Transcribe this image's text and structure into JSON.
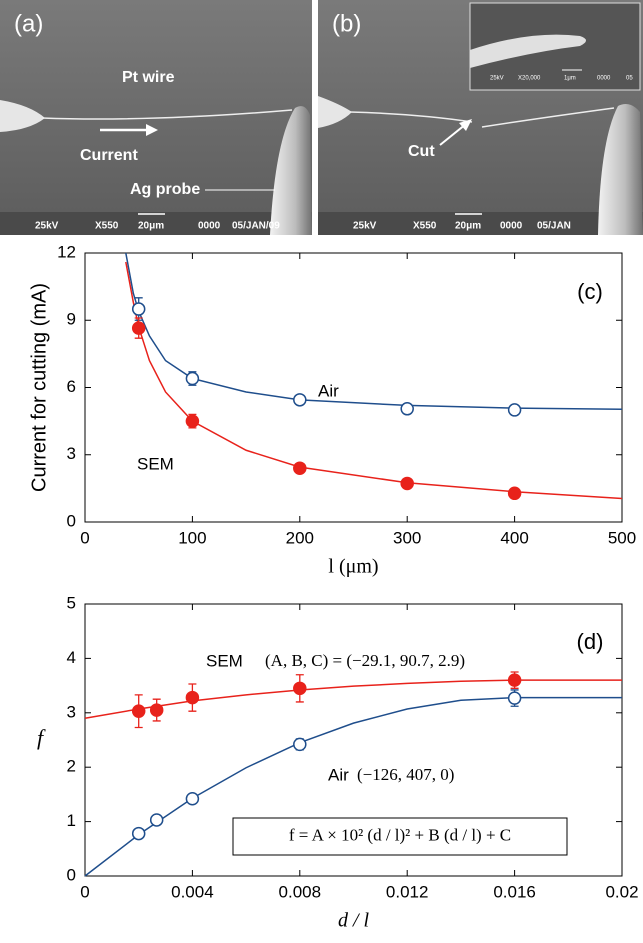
{
  "images": [
    {
      "label": "(a)",
      "annotations": [
        "Pt wire",
        "Current",
        "Ag probe"
      ],
      "info": [
        "25kV",
        "X550",
        "20μm",
        "0000",
        "05/JAN/09"
      ]
    },
    {
      "label": "(b)",
      "annotations": [
        "Cut"
      ],
      "info": [
        "25kV",
        "X550",
        "20μm",
        "0000",
        "05/JAN"
      ],
      "inset_info": [
        "25kV",
        "X20,000",
        "1μm",
        "0000",
        "05"
      ]
    }
  ],
  "chart_data": [
    {
      "type": "scatter",
      "panel_label": "(c)",
      "x_label": "l (μm)",
      "y_label": "Current for cutting (mA)",
      "xlim": [
        0,
        500
      ],
      "xticks": [
        0,
        100,
        200,
        300,
        400,
        500
      ],
      "ylim": [
        0,
        12
      ],
      "yticks": [
        0,
        3,
        6,
        9,
        12
      ],
      "series": [
        {
          "name": "Air",
          "color": "#1f4e8c",
          "marker": "open",
          "x": [
            50,
            100,
            200,
            300,
            400
          ],
          "values": [
            9.5,
            6.4,
            5.45,
            5.05,
            5.0
          ],
          "errors": [
            0.5,
            0.3,
            0.15,
            0.15,
            0.15
          ],
          "curve_x": [
            38,
            45,
            50,
            60,
            75,
            100,
            150,
            200,
            300,
            400,
            500
          ],
          "curve_values": [
            12,
            10.2,
            9.4,
            8.3,
            7.2,
            6.4,
            5.8,
            5.45,
            5.2,
            5.08,
            5.03
          ]
        },
        {
          "name": "SEM",
          "color": "#e8221b",
          "marker": "filled",
          "x": [
            50,
            100,
            200,
            300,
            400
          ],
          "values": [
            8.65,
            4.5,
            2.4,
            1.72,
            1.28
          ],
          "errors": [
            0.45,
            0.3,
            0.2,
            0.15,
            0.15
          ],
          "curve_x": [
            38,
            45,
            50,
            60,
            75,
            100,
            150,
            200,
            300,
            400,
            500
          ],
          "curve_values": [
            11.6,
            9.8,
            8.7,
            7.2,
            5.8,
            4.5,
            3.2,
            2.45,
            1.75,
            1.35,
            1.05
          ]
        }
      ]
    },
    {
      "type": "scatter",
      "panel_label": "(d)",
      "x_label": "d / l",
      "y_label": "f",
      "xlim": [
        0,
        0.02
      ],
      "xticks": [
        0,
        0.004,
        0.008,
        0.012,
        0.016,
        0.02
      ],
      "ylim": [
        0,
        5
      ],
      "yticks": [
        0,
        1,
        2,
        3,
        4,
        5
      ],
      "annotations": [
        "(A, B, C) = (−29.1, 90.7, 2.9)",
        "(−126, 407, 0)",
        "f = A × 10² (d / l)² + B (d / l) + C"
      ],
      "series": [
        {
          "name": "SEM",
          "color": "#e8221b",
          "marker": "filled",
          "x": [
            0.002,
            0.00267,
            0.004,
            0.008,
            0.016
          ],
          "values": [
            3.03,
            3.05,
            3.28,
            3.45,
            3.6
          ],
          "errors": [
            0.3,
            0.2,
            0.25,
            0.25,
            0.15
          ],
          "curve_x": [
            0,
            0.002,
            0.004,
            0.006,
            0.008,
            0.01,
            0.012,
            0.014,
            0.016,
            0.018,
            0.02
          ],
          "curve_values": [
            2.9,
            3.07,
            3.22,
            3.33,
            3.42,
            3.49,
            3.54,
            3.58,
            3.6,
            3.6,
            3.6
          ]
        },
        {
          "name": "Air",
          "color": "#1f4e8c",
          "marker": "open",
          "x": [
            0.002,
            0.00267,
            0.004,
            0.008,
            0.016
          ],
          "values": [
            0.78,
            1.03,
            1.42,
            2.42,
            3.27
          ],
          "errors": [
            0.08,
            0.08,
            0.08,
            0.1,
            0.15
          ],
          "curve_x": [
            0,
            0.002,
            0.004,
            0.006,
            0.008,
            0.01,
            0.012,
            0.014,
            0.016,
            0.018,
            0.02
          ],
          "curve_values": [
            0,
            0.76,
            1.43,
            1.99,
            2.45,
            2.81,
            3.07,
            3.23,
            3.28,
            3.28,
            3.28
          ]
        }
      ]
    }
  ]
}
